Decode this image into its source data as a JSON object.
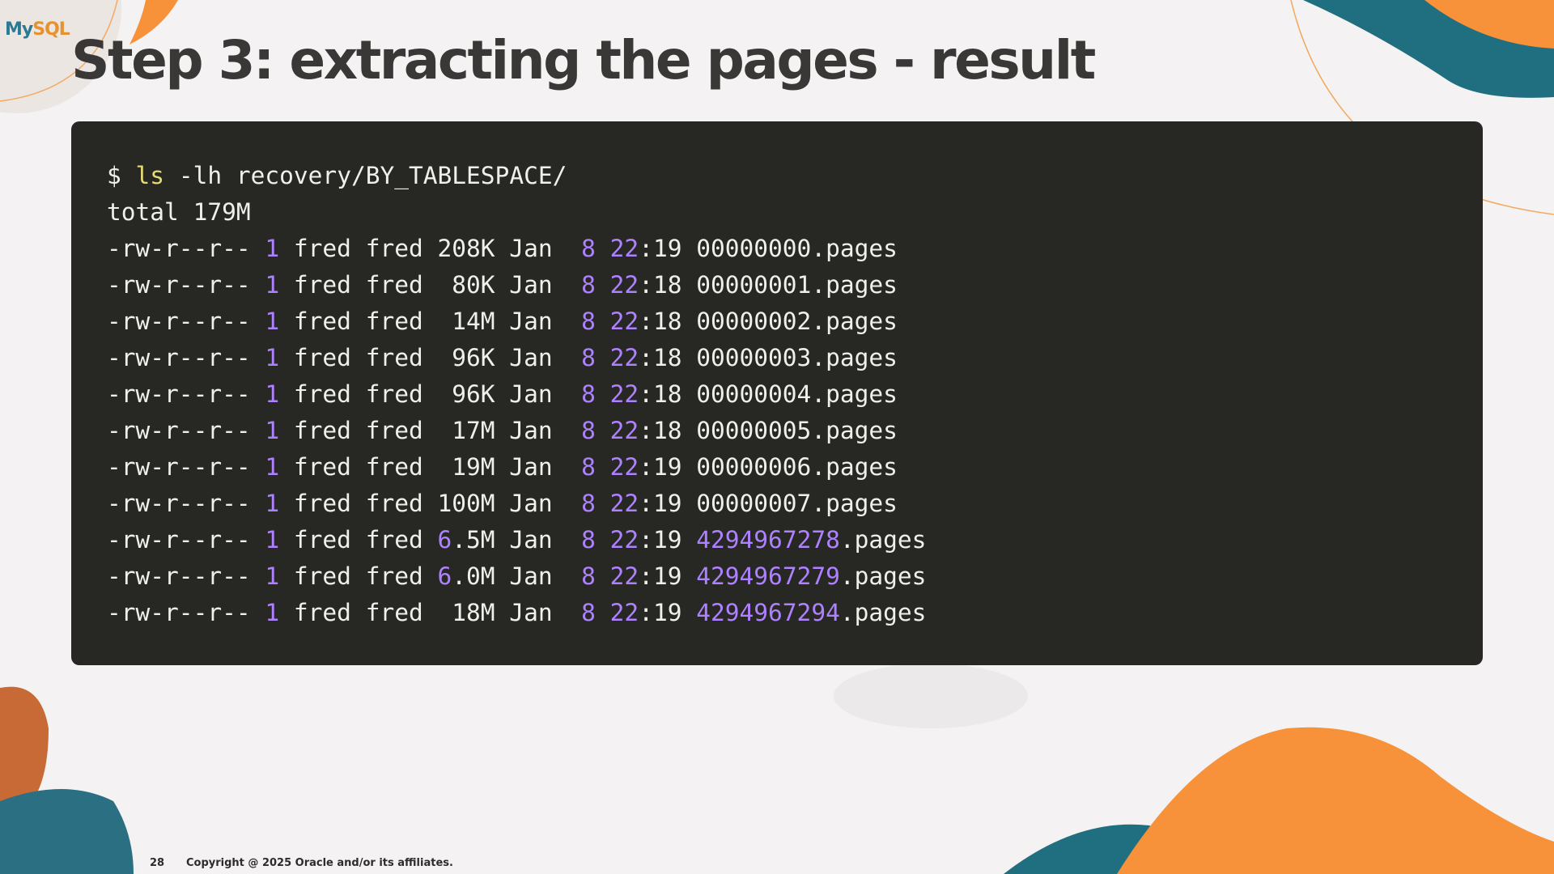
{
  "slide": {
    "logo_text": "MySQL",
    "title": "Step 3: extracting the pages - result",
    "page_number": "28",
    "copyright": "Copyright @ 2025 Oracle and/or its affiliates."
  },
  "colors": {
    "background": "#f4f2f2",
    "code_bg": "#272723",
    "code_text": "#f0f0ea",
    "number": "#ae81ff",
    "command": "#e6db74",
    "orange": "#f7913a",
    "teal": "#1f6f80"
  },
  "terminal": {
    "lines": [
      [
        {
          "t": "$ "
        },
        {
          "t": "ls",
          "c": "y"
        },
        {
          "t": " -lh recovery/BY_TABLESPACE/"
        }
      ],
      [
        {
          "t": "total 179M"
        }
      ],
      [
        {
          "t": "-rw-r--r-- "
        },
        {
          "t": "1",
          "c": "p"
        },
        {
          "t": " fred fred 208K Jan  "
        },
        {
          "t": "8",
          "c": "p"
        },
        {
          "t": " "
        },
        {
          "t": "22",
          "c": "p"
        },
        {
          "t": ":19 00000000.pages"
        }
      ],
      [
        {
          "t": "-rw-r--r-- "
        },
        {
          "t": "1",
          "c": "p"
        },
        {
          "t": " fred fred  80K Jan  "
        },
        {
          "t": "8",
          "c": "p"
        },
        {
          "t": " "
        },
        {
          "t": "22",
          "c": "p"
        },
        {
          "t": ":18 00000001.pages"
        }
      ],
      [
        {
          "t": "-rw-r--r-- "
        },
        {
          "t": "1",
          "c": "p"
        },
        {
          "t": " fred fred  14M Jan  "
        },
        {
          "t": "8",
          "c": "p"
        },
        {
          "t": " "
        },
        {
          "t": "22",
          "c": "p"
        },
        {
          "t": ":18 00000002.pages"
        }
      ],
      [
        {
          "t": "-rw-r--r-- "
        },
        {
          "t": "1",
          "c": "p"
        },
        {
          "t": " fred fred  96K Jan  "
        },
        {
          "t": "8",
          "c": "p"
        },
        {
          "t": " "
        },
        {
          "t": "22",
          "c": "p"
        },
        {
          "t": ":18 00000003.pages"
        }
      ],
      [
        {
          "t": "-rw-r--r-- "
        },
        {
          "t": "1",
          "c": "p"
        },
        {
          "t": " fred fred  96K Jan  "
        },
        {
          "t": "8",
          "c": "p"
        },
        {
          "t": " "
        },
        {
          "t": "22",
          "c": "p"
        },
        {
          "t": ":18 00000004.pages"
        }
      ],
      [
        {
          "t": "-rw-r--r-- "
        },
        {
          "t": "1",
          "c": "p"
        },
        {
          "t": " fred fred  17M Jan  "
        },
        {
          "t": "8",
          "c": "p"
        },
        {
          "t": " "
        },
        {
          "t": "22",
          "c": "p"
        },
        {
          "t": ":18 00000005.pages"
        }
      ],
      [
        {
          "t": "-rw-r--r-- "
        },
        {
          "t": "1",
          "c": "p"
        },
        {
          "t": " fred fred  19M Jan  "
        },
        {
          "t": "8",
          "c": "p"
        },
        {
          "t": " "
        },
        {
          "t": "22",
          "c": "p"
        },
        {
          "t": ":19 00000006.pages"
        }
      ],
      [
        {
          "t": "-rw-r--r-- "
        },
        {
          "t": "1",
          "c": "p"
        },
        {
          "t": " fred fred 100M Jan  "
        },
        {
          "t": "8",
          "c": "p"
        },
        {
          "t": " "
        },
        {
          "t": "22",
          "c": "p"
        },
        {
          "t": ":19 00000007.pages"
        }
      ],
      [
        {
          "t": "-rw-r--r-- "
        },
        {
          "t": "1",
          "c": "p"
        },
        {
          "t": " fred fred "
        },
        {
          "t": "6",
          "c": "p"
        },
        {
          "t": ".5M Jan  "
        },
        {
          "t": "8",
          "c": "p"
        },
        {
          "t": " "
        },
        {
          "t": "22",
          "c": "p"
        },
        {
          "t": ":19 "
        },
        {
          "t": "4294967278",
          "c": "p"
        },
        {
          "t": ".pages"
        }
      ],
      [
        {
          "t": "-rw-r--r-- "
        },
        {
          "t": "1",
          "c": "p"
        },
        {
          "t": " fred fred "
        },
        {
          "t": "6",
          "c": "p"
        },
        {
          "t": ".0M Jan  "
        },
        {
          "t": "8",
          "c": "p"
        },
        {
          "t": " "
        },
        {
          "t": "22",
          "c": "p"
        },
        {
          "t": ":19 "
        },
        {
          "t": "4294967279",
          "c": "p"
        },
        {
          "t": ".pages"
        }
      ],
      [
        {
          "t": "-rw-r--r-- "
        },
        {
          "t": "1",
          "c": "p"
        },
        {
          "t": " fred fred  18M Jan  "
        },
        {
          "t": "8",
          "c": "p"
        },
        {
          "t": " "
        },
        {
          "t": "22",
          "c": "p"
        },
        {
          "t": ":19 "
        },
        {
          "t": "4294967294",
          "c": "p"
        },
        {
          "t": ".pages"
        }
      ]
    ]
  }
}
